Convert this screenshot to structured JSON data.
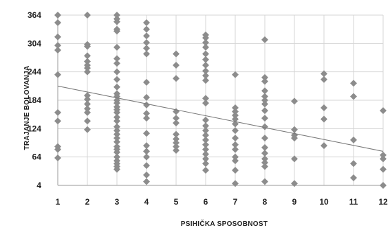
{
  "chart_data": {
    "type": "scatter",
    "xlabel": "PSIHIČKA SPOSOBNOST",
    "ylabel": "TRAJANJE BOLOVANJA",
    "x_ticks": [
      "1",
      "2",
      "3",
      "4",
      "5",
      "6",
      "7",
      "8",
      "9",
      "10",
      "11",
      "12"
    ],
    "y_ticks": [
      "364",
      "304",
      "244",
      "184",
      "124",
      "64",
      "4"
    ],
    "xlim": [
      1,
      12
    ],
    "ylim": [
      4,
      364
    ],
    "grid": true,
    "colors": {
      "points": "#8c8c8c",
      "trendline": "#7a7a7a",
      "grid": "#d4d4d4"
    },
    "trendline": {
      "x": [
        1,
        12
      ],
      "y": [
        214,
        76
      ]
    },
    "points": [
      [
        1,
        364
      ],
      [
        1,
        348
      ],
      [
        1,
        318
      ],
      [
        1,
        300
      ],
      [
        1,
        290
      ],
      [
        1,
        238
      ],
      [
        1,
        158
      ],
      [
        1,
        140
      ],
      [
        1,
        86
      ],
      [
        1,
        80
      ],
      [
        1,
        62
      ],
      [
        2,
        364
      ],
      [
        2,
        302
      ],
      [
        2,
        298
      ],
      [
        2,
        278
      ],
      [
        2,
        266
      ],
      [
        2,
        258
      ],
      [
        2,
        252
      ],
      [
        2,
        244
      ],
      [
        2,
        194
      ],
      [
        2,
        186
      ],
      [
        2,
        176
      ],
      [
        2,
        166
      ],
      [
        2,
        158
      ],
      [
        2,
        140
      ],
      [
        2,
        122
      ],
      [
        3,
        364
      ],
      [
        3,
        356
      ],
      [
        3,
        350
      ],
      [
        3,
        334
      ],
      [
        3,
        330
      ],
      [
        3,
        296
      ],
      [
        3,
        272
      ],
      [
        3,
        262
      ],
      [
        3,
        244
      ],
      [
        3,
        228
      ],
      [
        3,
        212
      ],
      [
        3,
        198
      ],
      [
        3,
        192
      ],
      [
        3,
        184
      ],
      [
        3,
        178
      ],
      [
        3,
        170
      ],
      [
        3,
        164
      ],
      [
        3,
        158
      ],
      [
        3,
        148
      ],
      [
        3,
        140
      ],
      [
        3,
        128
      ],
      [
        3,
        120
      ],
      [
        3,
        112
      ],
      [
        3,
        104
      ],
      [
        3,
        96
      ],
      [
        3,
        86
      ],
      [
        3,
        80
      ],
      [
        3,
        74
      ],
      [
        3,
        64
      ],
      [
        3,
        56
      ],
      [
        3,
        50
      ],
      [
        3,
        44
      ],
      [
        3,
        38
      ],
      [
        4,
        348
      ],
      [
        4,
        334
      ],
      [
        4,
        320
      ],
      [
        4,
        306
      ],
      [
        4,
        294
      ],
      [
        4,
        282
      ],
      [
        4,
        222
      ],
      [
        4,
        190
      ],
      [
        4,
        174
      ],
      [
        4,
        156
      ],
      [
        4,
        146
      ],
      [
        4,
        114
      ],
      [
        4,
        88
      ],
      [
        4,
        76
      ],
      [
        4,
        64
      ],
      [
        4,
        46
      ],
      [
        4,
        26
      ],
      [
        4,
        12
      ],
      [
        5,
        282
      ],
      [
        5,
        258
      ],
      [
        5,
        230
      ],
      [
        5,
        160
      ],
      [
        5,
        146
      ],
      [
        5,
        136
      ],
      [
        5,
        112
      ],
      [
        5,
        102
      ],
      [
        5,
        94
      ],
      [
        5,
        86
      ],
      [
        5,
        78
      ],
      [
        6,
        322
      ],
      [
        6,
        316
      ],
      [
        6,
        306
      ],
      [
        6,
        296
      ],
      [
        6,
        282
      ],
      [
        6,
        270
      ],
      [
        6,
        258
      ],
      [
        6,
        246
      ],
      [
        6,
        236
      ],
      [
        6,
        226
      ],
      [
        6,
        188
      ],
      [
        6,
        178
      ],
      [
        6,
        142
      ],
      [
        6,
        130
      ],
      [
        6,
        120
      ],
      [
        6,
        110
      ],
      [
        6,
        100
      ],
      [
        6,
        90
      ],
      [
        6,
        80
      ],
      [
        6,
        70
      ],
      [
        6,
        60
      ],
      [
        6,
        50
      ],
      [
        6,
        36
      ],
      [
        7,
        238
      ],
      [
        7,
        168
      ],
      [
        7,
        160
      ],
      [
        7,
        152
      ],
      [
        7,
        144
      ],
      [
        7,
        134
      ],
      [
        7,
        120
      ],
      [
        7,
        104
      ],
      [
        7,
        90
      ],
      [
        7,
        80
      ],
      [
        7,
        64
      ],
      [
        7,
        56
      ],
      [
        7,
        36
      ],
      [
        7,
        8
      ],
      [
        8,
        312
      ],
      [
        8,
        232
      ],
      [
        8,
        224
      ],
      [
        8,
        204
      ],
      [
        8,
        192
      ],
      [
        8,
        184
      ],
      [
        8,
        176
      ],
      [
        8,
        162
      ],
      [
        8,
        146
      ],
      [
        8,
        128
      ],
      [
        8,
        104
      ],
      [
        8,
        84
      ],
      [
        8,
        72
      ],
      [
        8,
        60
      ],
      [
        8,
        52
      ],
      [
        8,
        44
      ],
      [
        8,
        12
      ],
      [
        9,
        182
      ],
      [
        9,
        122
      ],
      [
        9,
        110
      ],
      [
        9,
        104
      ],
      [
        9,
        60
      ],
      [
        9,
        8
      ],
      [
        10,
        240
      ],
      [
        10,
        228
      ],
      [
        10,
        168
      ],
      [
        10,
        144
      ],
      [
        10,
        88
      ],
      [
        11,
        220
      ],
      [
        11,
        192
      ],
      [
        11,
        100
      ],
      [
        11,
        50
      ],
      [
        11,
        20
      ],
      [
        12,
        162
      ],
      [
        12,
        68
      ],
      [
        12,
        60
      ],
      [
        12,
        38
      ],
      [
        12,
        4
      ]
    ]
  }
}
